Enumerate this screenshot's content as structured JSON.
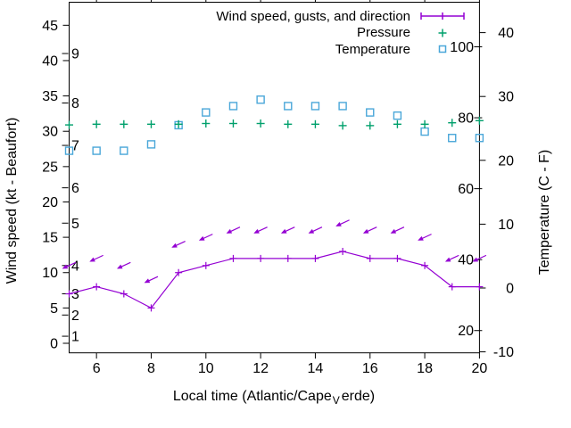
{
  "figure": {
    "background": "#ffffff",
    "legend": {
      "entries": [
        {
          "label": "Wind speed, gusts, and direction",
          "marker": "errorbar-line",
          "color": "#9400d3"
        },
        {
          "label": "Pressure",
          "marker": "plus",
          "color": "#00a06c"
        },
        {
          "label": "Temperature",
          "marker": "open-square",
          "color": "#4aa7d9"
        }
      ]
    },
    "x_axis_label_parts": {
      "prefix": "Local time (Atlantic/Cape",
      "subscript": "V",
      "suffix": "erde)"
    },
    "y_left_label": "Wind speed (kt - Beaufort)",
    "y_right_label": "Temperature (C - F)"
  },
  "chart_data": {
    "type": "line",
    "title": "",
    "x_label": "Local time (Atlantic/Cape_Verde)",
    "x_hours": [
      5,
      6,
      7,
      8,
      9,
      10,
      11,
      12,
      13,
      14,
      15,
      16,
      17,
      18,
      19,
      20
    ],
    "x_ticks": [
      6,
      8,
      10,
      12,
      14,
      16,
      18,
      20
    ],
    "x_range": [
      5,
      20
    ],
    "grid": false,
    "legend_position": "top-right-inside",
    "series": [
      {
        "name": "Wind speed, gusts, and direction",
        "type": "line+points",
        "marker": "plus",
        "color": "#9400d3",
        "unit": "kt",
        "wind_kt": [
          7,
          8,
          7,
          5,
          10,
          11,
          12,
          12,
          12,
          12,
          13,
          12,
          12,
          11,
          8,
          8
        ],
        "gust_kt": [
          11,
          12,
          11,
          9,
          14,
          15,
          16,
          16,
          16,
          16,
          17,
          16,
          16,
          15,
          12,
          12
        ],
        "direction_note": "gust markers are arrows pointing toward lower-left"
      },
      {
        "name": "Pressure",
        "type": "points",
        "marker": "plus",
        "color": "#00a06c",
        "values_left_axis_units": [
          30.9,
          31,
          31,
          31,
          31,
          31.1,
          31.1,
          31.1,
          31,
          31,
          30.8,
          30.8,
          31,
          31,
          31.2,
          31.5
        ]
      },
      {
        "name": "Temperature",
        "type": "points",
        "marker": "open-square",
        "color": "#4aa7d9",
        "unit": "C",
        "values_c": [
          21.5,
          21.5,
          21.5,
          22.5,
          25.5,
          27.5,
          28.5,
          29.5,
          28.5,
          28.5,
          28.5,
          27.5,
          27,
          24.5,
          23.5,
          23.5
        ]
      }
    ],
    "y_left": {
      "label": "Wind speed (kt - Beaufort)",
      "ticks": [
        0,
        5,
        10,
        15,
        20,
        25,
        30,
        35,
        40,
        45
      ]
    },
    "y_left_inner_beaufort": {
      "labels": [
        1,
        2,
        3,
        4,
        5,
        6,
        7,
        8,
        9
      ],
      "positions_kt": [
        1,
        4,
        7,
        11,
        17,
        22,
        28,
        34,
        41
      ]
    },
    "y_right": {
      "label": "Temperature (C - F)",
      "ticks_c": [
        -10,
        0,
        10,
        20,
        30,
        40
      ]
    },
    "y_right_inner_fahrenheit": {
      "labels": [
        20,
        40,
        60,
        80,
        100
      ]
    }
  }
}
